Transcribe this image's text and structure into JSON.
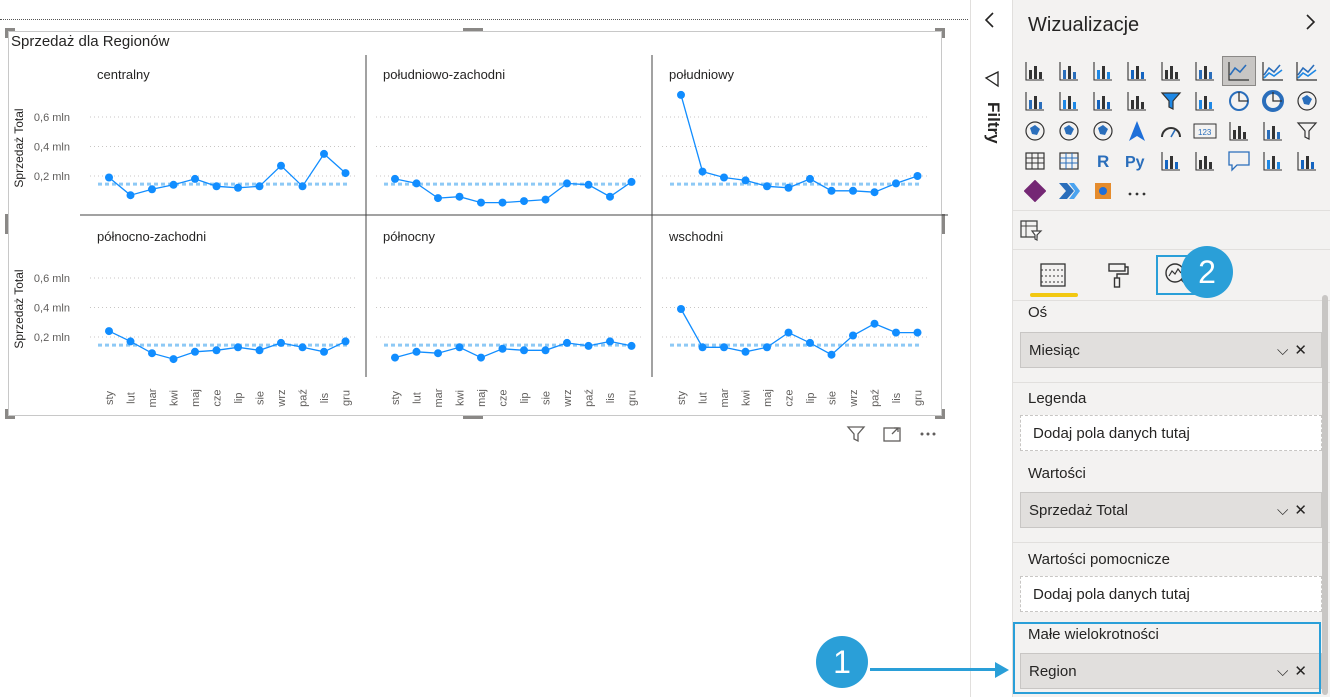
{
  "visual": {
    "title": "Sprzedaż dla Regionów",
    "toolbar_icons": [
      "filter-icon",
      "focus-mode-icon",
      "more-options-icon"
    ]
  },
  "chart_data": {
    "type": "line",
    "title": "Sprzedaż dla Regionów",
    "ylabel": "Sprzedaż Total",
    "ytick_labels": [
      "0,6 mln",
      "0,4 mln",
      "0,2 mln"
    ],
    "ytick_values": [
      0.6,
      0.4,
      0.2
    ],
    "ylim": [
      0,
      0.75
    ],
    "categories": [
      "sty",
      "lut",
      "mar",
      "kwi",
      "maj",
      "cze",
      "lip",
      "sie",
      "wrz",
      "paź",
      "lis",
      "gru"
    ],
    "reference_line": "dashed light blue average per panel",
    "panels": [
      {
        "name": "centralny",
        "values": [
          0.19,
          0.07,
          0.11,
          0.14,
          0.18,
          0.13,
          0.12,
          0.13,
          0.27,
          0.13,
          0.35,
          0.22
        ],
        "average": 0.145
      },
      {
        "name": "południowo-zachodni",
        "values": [
          0.18,
          0.15,
          0.05,
          0.06,
          0.02,
          0.02,
          0.03,
          0.04,
          0.15,
          0.14,
          0.06,
          0.16
        ],
        "average": 0.145
      },
      {
        "name": "południowy",
        "values": [
          0.75,
          0.23,
          0.19,
          0.17,
          0.13,
          0.12,
          0.18,
          0.1,
          0.1,
          0.09,
          0.15,
          0.2
        ],
        "average": 0.145
      },
      {
        "name": "północno-zachodni",
        "values": [
          0.24,
          0.17,
          0.09,
          0.05,
          0.1,
          0.11,
          0.13,
          0.11,
          0.16,
          0.13,
          0.1,
          0.17
        ],
        "average": 0.145
      },
      {
        "name": "północny",
        "values": [
          0.06,
          0.1,
          0.09,
          0.13,
          0.06,
          0.12,
          0.11,
          0.11,
          0.16,
          0.14,
          0.17,
          0.14
        ],
        "average": 0.145
      },
      {
        "name": "wschodni",
        "values": [
          0.39,
          0.13,
          0.13,
          0.1,
          0.13,
          0.23,
          0.16,
          0.08,
          0.21,
          0.29,
          0.23,
          0.23
        ],
        "average": 0.145
      }
    ],
    "colors": {
      "line": "#118dff",
      "reference": "#8ec9f5"
    },
    "grid": true
  },
  "filters_pane": {
    "label": "Filtry",
    "collapse_icon": "chevron-left-icon",
    "filter_icon": "funnel-outline-icon"
  },
  "viz_pane": {
    "title": "Wizualizacje",
    "expand_icon": "chevron-right-icon",
    "visual_icons": [
      "stacked-bar-chart-icon",
      "stacked-column-chart-icon",
      "clustered-bar-chart-icon",
      "clustered-column-chart-icon",
      "100-stacked-bar-chart-icon",
      "100-stacked-column-chart-icon",
      "line-chart-icon",
      "area-chart-icon",
      "stacked-area-chart-icon",
      "line-and-stacked-column-chart-icon",
      "line-and-clustered-column-chart-icon",
      "ribbon-chart-icon",
      "waterfall-chart-icon",
      "funnel-chart-icon",
      "scatter-chart-icon",
      "pie-chart-icon",
      "donut-chart-icon",
      "treemap-icon",
      "map-icon",
      "filled-map-icon",
      "shape-map-icon",
      "azure-map-icon",
      "gauge-icon",
      "card-icon",
      "multi-row-card-icon",
      "kpi-icon",
      "slicer-icon",
      "table-icon",
      "matrix-icon",
      "r-visual-icon",
      "python-visual-icon",
      "key-influencers-icon",
      "decomposition-tree-icon",
      "qa-icon",
      "paginated-report-icon",
      "smart-narrative-icon",
      "power-apps-icon",
      "power-automate-icon",
      "arcgis-icon",
      "more-visuals-icon"
    ],
    "extra_icon": "field-parameters-icon",
    "selected_visual": "line-chart-icon",
    "tabs": [
      "fields-tab-icon",
      "format-tab-icon",
      "analytics-tab-icon"
    ],
    "badge_2": "2",
    "badge_1": "1",
    "wells": {
      "axis_label": "Oś",
      "axis_value": "Miesiąc",
      "legend_label": "Legenda",
      "legend_placeholder": "Dodaj pola danych tutaj",
      "values_label": "Wartości",
      "values_value": "Sprzedaż Total",
      "tooltips_label": "Wartości pomocnicze",
      "tooltips_placeholder": "Dodaj pola danych tutaj",
      "small_multiples_label": "Małe wielokrotności",
      "small_multiples_value": "Region"
    }
  }
}
